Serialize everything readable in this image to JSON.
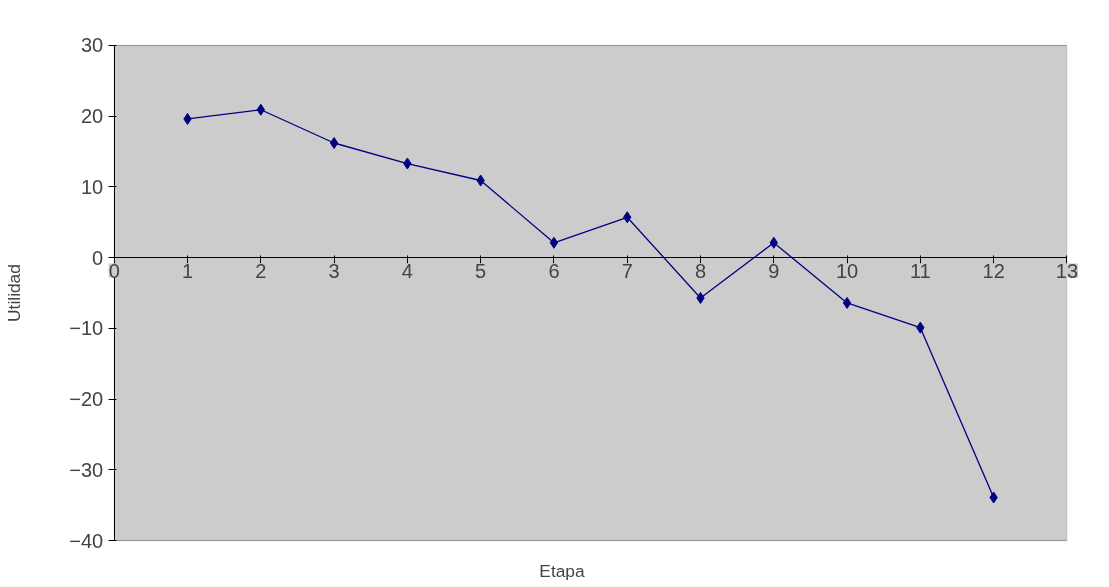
{
  "chart_data": {
    "type": "line",
    "xlabel": "Etapa",
    "ylabel": "Utilidad",
    "x": [
      1,
      2,
      3,
      4,
      5,
      6,
      7,
      8,
      9,
      10,
      11,
      12
    ],
    "series": [
      {
        "color": "#000080",
        "values": [
          19.6,
          20.9,
          16.2,
          13.3,
          10.9,
          2.1,
          5.7,
          -5.7,
          2.1,
          -6.4,
          -9.9,
          -33.9
        ]
      }
    ],
    "xlim": [
      0,
      13
    ],
    "xticks": [
      0,
      1,
      2,
      3,
      4,
      5,
      6,
      7,
      8,
      9,
      10,
      11,
      12,
      13
    ],
    "ylim": [
      -40,
      30
    ],
    "yticks": [
      -40,
      -30,
      -20,
      -10,
      0,
      10,
      20,
      30
    ],
    "grid": "y",
    "marker": "diamond",
    "line_style": "solid"
  }
}
